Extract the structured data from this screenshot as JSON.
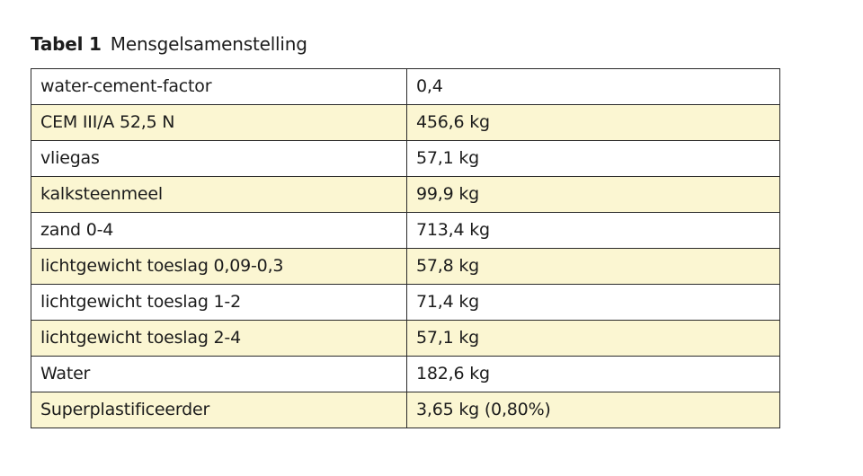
{
  "caption": {
    "label": "Tabel 1",
    "title": "Mensgelsamenstelling"
  },
  "colors": {
    "row_highlight": "#fbf6d2",
    "row_plain": "#ffffff",
    "border": "#2a2a2a"
  },
  "rows": [
    {
      "ingredient": "water-cement-factor",
      "amount": "0,4",
      "highlight": false
    },
    {
      "ingredient": "CEM III/A 52,5 N",
      "amount": "456,6 kg",
      "highlight": true
    },
    {
      "ingredient": "vliegas",
      "amount": "57,1 kg",
      "highlight": false
    },
    {
      "ingredient": "kalksteenmeel",
      "amount": "99,9 kg",
      "highlight": true
    },
    {
      "ingredient": "zand 0-4",
      "amount": "713,4 kg",
      "highlight": false
    },
    {
      "ingredient": "lichtgewicht toeslag 0,09-0,3",
      "amount": "57,8 kg",
      "highlight": true
    },
    {
      "ingredient": "lichtgewicht toeslag 1-2",
      "amount": "71,4 kg",
      "highlight": false
    },
    {
      "ingredient": "lichtgewicht toeslag 2-4",
      "amount": "57,1 kg",
      "highlight": true
    },
    {
      "ingredient": "Water",
      "amount": "182,6 kg",
      "highlight": false
    },
    {
      "ingredient": "Superplastificeerder",
      "amount": "3,65 kg (0,80%)",
      "highlight": true
    }
  ]
}
